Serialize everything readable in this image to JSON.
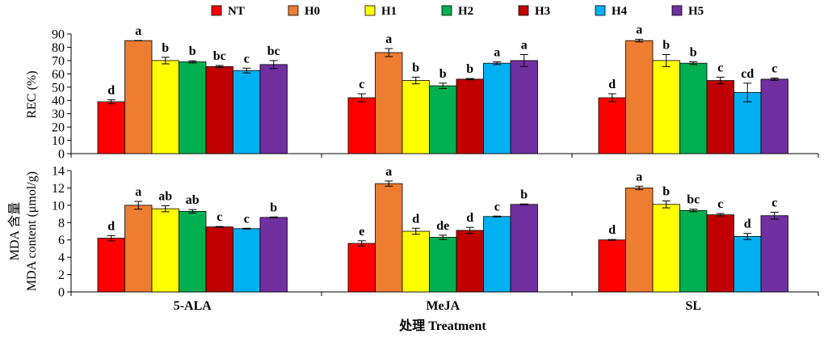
{
  "chart_data": [
    {
      "type": "bar",
      "categories": [
        "5-ALA",
        "MeJA",
        "SL"
      ],
      "ylabel": "REC (%)",
      "ylim": [
        0,
        90
      ],
      "yticks": [
        0,
        10,
        20,
        30,
        40,
        50,
        60,
        70,
        80,
        90
      ],
      "series": [
        {
          "name": "NT",
          "values": [
            39,
            42,
            42
          ],
          "errors": [
            1.5,
            3,
            3
          ],
          "letters": [
            "d",
            "c",
            "d"
          ]
        },
        {
          "name": "H0",
          "values": [
            85,
            76,
            85
          ],
          "errors": [
            0,
            3,
            1
          ],
          "letters": [
            "a",
            "a",
            "a"
          ]
        },
        {
          "name": "H1",
          "values": [
            70,
            55,
            70
          ],
          "errors": [
            2.5,
            2.5,
            4.5
          ],
          "letters": [
            "b",
            "b",
            "b"
          ]
        },
        {
          "name": "H2",
          "values": [
            69,
            51,
            68
          ],
          "errors": [
            0.8,
            2,
            1
          ],
          "letters": [
            "b",
            "b",
            "b"
          ]
        },
        {
          "name": "H3",
          "values": [
            65.5,
            56,
            55
          ],
          "errors": [
            0.8,
            0.5,
            2.5
          ],
          "letters": [
            "bc",
            "b",
            "c"
          ]
        },
        {
          "name": "H4",
          "values": [
            62.5,
            68,
            46
          ],
          "errors": [
            1.8,
            1,
            7
          ],
          "letters": [
            "c",
            "a",
            "cd"
          ]
        },
        {
          "name": "H5",
          "values": [
            67,
            70,
            56
          ],
          "errors": [
            3,
            4.5,
            0.8
          ],
          "letters": [
            "bc",
            "a",
            "c"
          ]
        }
      ]
    },
    {
      "type": "bar",
      "categories": [
        "5-ALA",
        "MeJA",
        "SL"
      ],
      "ylabel_cn": "MDA 含量",
      "ylabel": "MDA content (μmol/g)",
      "xlabel": "处理 Treatment",
      "ylim": [
        0,
        14
      ],
      "yticks": [
        0,
        2,
        4,
        6,
        8,
        10,
        12,
        14
      ],
      "series": [
        {
          "name": "NT",
          "values": [
            6.2,
            5.6,
            6.0
          ],
          "errors": [
            0.3,
            0.3,
            0.05
          ],
          "letters": [
            "d",
            "e",
            "d"
          ]
        },
        {
          "name": "H0",
          "values": [
            10.0,
            12.5,
            12.0
          ],
          "errors": [
            0.45,
            0.3,
            0.2
          ],
          "letters": [
            "a",
            "a",
            "a"
          ]
        },
        {
          "name": "H1",
          "values": [
            9.6,
            7.0,
            10.1
          ],
          "errors": [
            0.35,
            0.35,
            0.4
          ],
          "letters": [
            "ab",
            "d",
            "b"
          ]
        },
        {
          "name": "H2",
          "values": [
            9.3,
            6.3,
            9.4
          ],
          "errors": [
            0.2,
            0.25,
            0.15
          ],
          "letters": [
            "ab",
            "de",
            "bc"
          ]
        },
        {
          "name": "H3",
          "values": [
            7.5,
            7.1,
            8.9
          ],
          "errors": [
            0.05,
            0.35,
            0.15
          ],
          "letters": [
            "c",
            "d",
            "c"
          ]
        },
        {
          "name": "H4",
          "values": [
            7.3,
            8.7,
            6.4
          ],
          "errors": [
            0.05,
            0.05,
            0.35
          ],
          "letters": [
            "c",
            "c",
            "d"
          ]
        },
        {
          "name": "H5",
          "values": [
            8.6,
            10.1,
            8.8
          ],
          "errors": [
            0.05,
            0.05,
            0.4
          ],
          "letters": [
            "b",
            "b",
            "c"
          ]
        }
      ]
    }
  ],
  "colors": {
    "NT": "#ff0000",
    "H0": "#ed7d31",
    "H1": "#ffff00",
    "H2": "#00b050",
    "H3": "#c00000",
    "H4": "#00b0f0",
    "H5": "#7030a0"
  }
}
